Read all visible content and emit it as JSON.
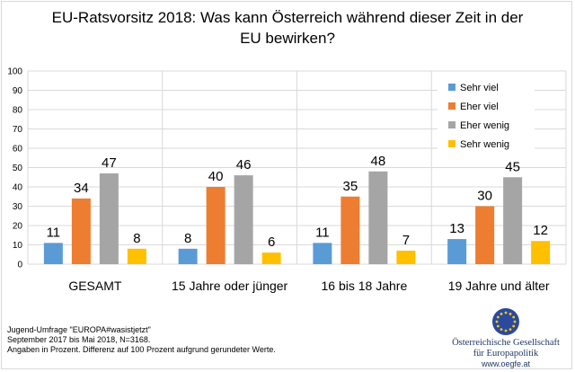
{
  "chart_data": {
    "type": "bar",
    "title_lines": [
      "EU-Ratsvorsitz 2018: Was kann Österreich während dieser Zeit in der",
      "EU bewirken?"
    ],
    "categories": [
      "GESAMT",
      "15 Jahre oder jünger",
      "16 bis 18 Jahre",
      "19 Jahre und älter"
    ],
    "series": [
      {
        "name": "Sehr viel",
        "color": "#5b9bd5",
        "values": [
          11,
          8,
          11,
          13
        ]
      },
      {
        "name": "Eher viel",
        "color": "#ed7d31",
        "values": [
          34,
          40,
          35,
          30
        ]
      },
      {
        "name": "Eher wenig",
        "color": "#a5a5a5",
        "values": [
          47,
          46,
          48,
          45
        ]
      },
      {
        "name": "Sehr wenig",
        "color": "#ffc000",
        "values": [
          8,
          6,
          7,
          12
        ]
      }
    ],
    "ylim": [
      0,
      100
    ],
    "yticks": [
      0,
      10,
      20,
      30,
      40,
      50,
      60,
      70,
      80,
      90,
      100
    ],
    "grid": true,
    "legend_position": "top-right"
  },
  "notes": [
    "Jugend-Umfrage \"EUROPA#wasistjetzt\"",
    "September 2017 bis Mai 2018, N=3168.",
    "Angaben in Prozent. Differenz auf 100 Prozent aufgrund gerundeter Werte."
  ],
  "organization": {
    "name_lines": [
      "Österreichische Gesellschaft",
      "für Europapolitik"
    ],
    "url": "www.oegfe.at",
    "logo": "eu-flag-logo",
    "logo_color": "#2b4a9e",
    "star_color": "#ffcc00"
  }
}
